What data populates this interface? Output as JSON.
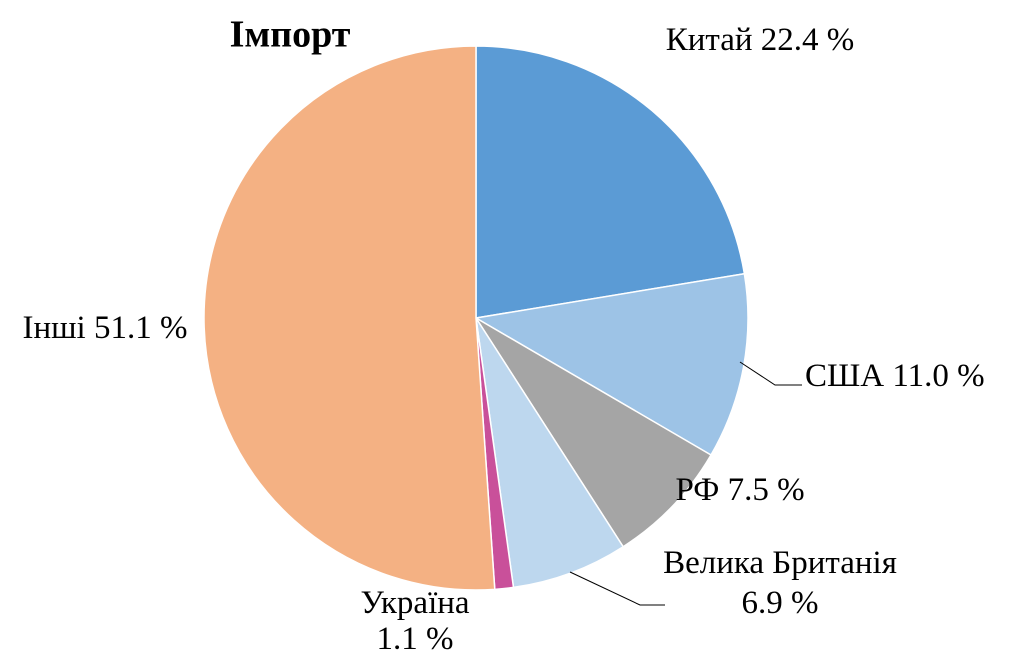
{
  "chart_data": {
    "type": "pie",
    "title": "Імпорт",
    "categories": [
      "Китай",
      "США",
      "РФ",
      "Велика Британія",
      "Україна",
      "Інші"
    ],
    "values": [
      22.4,
      11.0,
      7.5,
      6.9,
      1.1,
      51.1
    ],
    "value_labels": [
      "22.4 %",
      "11.0 %",
      "7.5 %",
      "6.9 %",
      "1.1 %",
      "51.1 %"
    ],
    "colors": [
      "#5b9bd5",
      "#9dc3e6",
      "#a5a5a5",
      "#bdd7ee",
      "#c9509a",
      "#f4b183"
    ]
  }
}
